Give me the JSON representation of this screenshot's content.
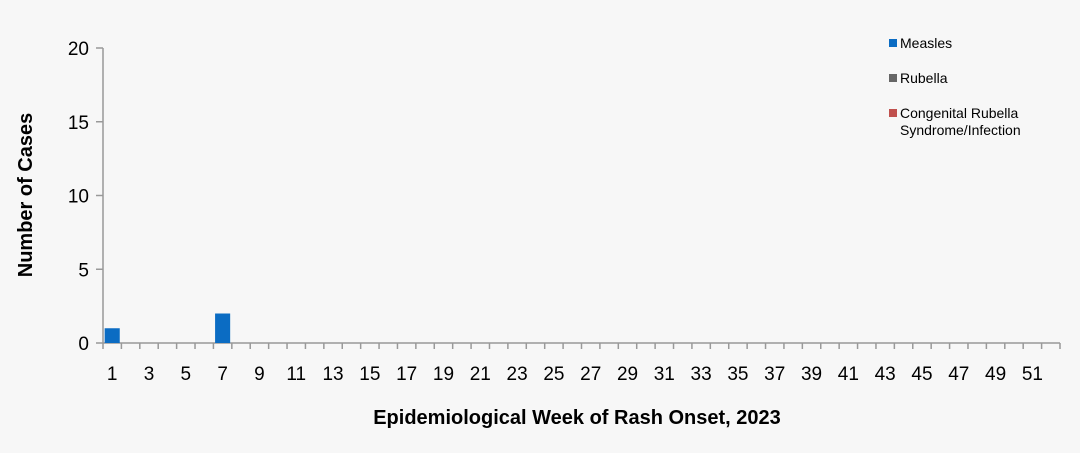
{
  "chart_data": {
    "type": "bar",
    "title": "",
    "xlabel": "Epidemiological Week of Rash Onset, 2023",
    "ylabel": "Number of Cases",
    "ylim": [
      0,
      20
    ],
    "yticks": [
      "0",
      "5",
      "10",
      "15",
      "20"
    ],
    "x": [
      1,
      2,
      3,
      4,
      5,
      6,
      7,
      8,
      9,
      10,
      11,
      12,
      13,
      14,
      15,
      16,
      17,
      18,
      19,
      20,
      21,
      22,
      23,
      24,
      25,
      26,
      27,
      28,
      29,
      30,
      31,
      32,
      33,
      34,
      35,
      36,
      37,
      38,
      39,
      40,
      41,
      42,
      43,
      44,
      45,
      46,
      47,
      48,
      49,
      50,
      51,
      52
    ],
    "xtick_labels": [
      "1",
      "3",
      "5",
      "7",
      "9",
      "11",
      "13",
      "15",
      "17",
      "19",
      "21",
      "23",
      "25",
      "27",
      "29",
      "31",
      "33",
      "35",
      "37",
      "39",
      "41",
      "43",
      "45",
      "47",
      "49",
      "51"
    ],
    "series": [
      {
        "name": "Measles",
        "color": "#0b6cc3",
        "values": {
          "1": 1,
          "7": 2
        }
      },
      {
        "name": "Rubella",
        "color": "#666666",
        "values": {}
      },
      {
        "name": "Congenital Rubella Syndrome/Infection",
        "color": "#c0504d",
        "values": {}
      }
    ],
    "legend": {
      "placement": "top-right",
      "entries": [
        "Measles",
        "Rubella",
        "Congenital Rubella",
        "Syndrome/Infection"
      ]
    },
    "grid": false
  }
}
